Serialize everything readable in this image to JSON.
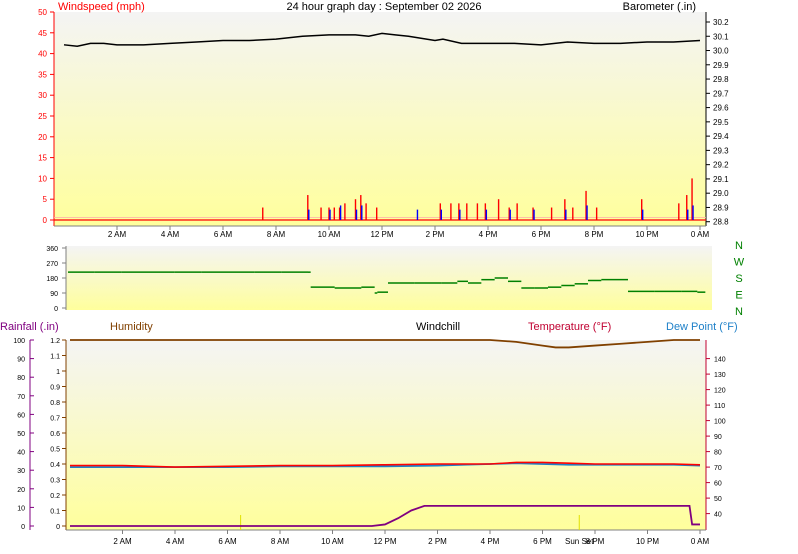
{
  "header": {
    "title": "24 hour graph day : September 02 2026",
    "left_label": "Windspeed (mph)",
    "right_label": "Barometer (.in)"
  },
  "wind_dir_labels": [
    "N",
    "W",
    "S",
    "E",
    "N"
  ],
  "bottom_labels": {
    "rainfall": "Rainfall (.in)",
    "humidity": "Humidity",
    "windchill": "Windchill",
    "temperature": "Temperature (°F)",
    "dewpoint": "Dew Point (°F)",
    "sun_set_marker": "Sun Set"
  },
  "colors": {
    "wind": "#ff0000",
    "gust": "#0000ff",
    "barometer": "#000000",
    "direction": "#008000",
    "temperature": "#ff0000",
    "dewpoint": "#1e80c8",
    "humidity": "#804000",
    "rain": "#800080",
    "rain_axis": "#800080",
    "humidity_axis": "#804000",
    "temp_axis": "#c00030"
  },
  "chart_data": [
    {
      "type": "line",
      "name": "wind-barometer",
      "title": "24 hour graph day : September 02 2026",
      "x_ticks": [
        "2 AM",
        "4 AM",
        "6 AM",
        "8 AM",
        "10 AM",
        "12 PM",
        "2 PM",
        "4 PM",
        "6 PM",
        "8 PM",
        "10 PM",
        "0 AM"
      ],
      "xlim": [
        0,
        24
      ],
      "y_left": {
        "label": "Windspeed (mph)",
        "ticks": [
          0,
          5,
          10,
          15,
          20,
          25,
          30,
          35,
          40,
          45,
          50
        ],
        "ylim": [
          0,
          50
        ]
      },
      "y_right": {
        "label": "Barometer (.in)",
        "ticks": [
          28.8,
          28.9,
          29.0,
          29.1,
          29.2,
          29.3,
          29.4,
          29.5,
          29.6,
          29.7,
          29.8,
          29.9,
          30.0,
          30.1,
          30.2
        ],
        "ylim": [
          28.77,
          30.27
        ]
      },
      "series": [
        {
          "name": "Barometer",
          "axis": "right",
          "x": [
            0,
            0.5,
            1,
            1.5,
            2,
            3,
            4,
            5,
            6,
            7,
            8,
            9,
            10,
            11,
            11.5,
            12,
            12.5,
            13,
            14,
            14.3,
            15,
            16,
            17,
            18,
            19,
            20,
            21,
            22,
            23,
            24
          ],
          "y": [
            30.04,
            30.03,
            30.05,
            30.05,
            30.04,
            30.04,
            30.05,
            30.06,
            30.07,
            30.07,
            30.08,
            30.1,
            30.11,
            30.11,
            30.1,
            30.12,
            30.11,
            30.1,
            30.07,
            30.08,
            30.05,
            30.05,
            30.05,
            30.04,
            30.06,
            30.05,
            30.05,
            30.06,
            30.06,
            30.07
          ]
        },
        {
          "name": "Wind",
          "axis": "left",
          "x": [
            7.5,
            9.2,
            9.7,
            10,
            10.2,
            10.4,
            10.6,
            11,
            11.2,
            11.4,
            11.8,
            14.2,
            14.6,
            14.9,
            15.2,
            15.6,
            15.9,
            16.4,
            16.8,
            17.1,
            17.7,
            18.4,
            18.9,
            19.2,
            19.7,
            20.1,
            21.8,
            23.2,
            23.5,
            23.7
          ],
          "y": [
            3,
            6,
            3,
            3,
            3,
            3,
            4,
            5,
            6,
            4,
            3,
            4,
            4,
            4,
            4,
            4,
            4,
            5,
            3,
            4,
            3,
            3,
            5,
            3,
            7,
            3,
            5,
            4,
            6,
            10
          ]
        },
        {
          "name": "Gust",
          "axis": "left",
          "x": [
            9.2,
            10,
            10.4,
            11,
            11.2,
            13.3,
            14.2,
            14.9,
            15.9,
            16.8,
            17.7,
            18.9,
            19.7,
            21.8,
            23.5,
            23.7
          ],
          "y": [
            1,
            1,
            2,
            1,
            2,
            1,
            1,
            1,
            1,
            1,
            1,
            1,
            2,
            1,
            1,
            2
          ]
        }
      ]
    },
    {
      "type": "scatter",
      "name": "wind-direction",
      "y_ticks": [
        0,
        90,
        180,
        270,
        360
      ],
      "ylim": [
        0,
        360
      ],
      "series": [
        {
          "name": "Direction",
          "x": [
            0,
            1,
            2,
            3,
            4,
            5,
            6,
            7,
            8,
            9,
            9.1,
            10,
            10.5,
            11,
            11.5,
            11.6,
            12,
            13,
            14,
            14.6,
            15,
            15.5,
            16,
            16.5,
            17,
            17.5,
            18,
            18.5,
            19,
            19.5,
            20,
            21,
            22,
            23,
            23.6,
            23.9
          ],
          "y": [
            215,
            215,
            215,
            215,
            215,
            215,
            215,
            215,
            215,
            215,
            125,
            120,
            120,
            125,
            90,
            95,
            150,
            150,
            150,
            160,
            150,
            170,
            180,
            160,
            120,
            120,
            125,
            135,
            145,
            165,
            170,
            100,
            100,
            100,
            95,
            40
          ]
        }
      ]
    },
    {
      "type": "line",
      "name": "rain-humidity-temp",
      "x_ticks": [
        "2 AM",
        "4 AM",
        "6 AM",
        "8 AM",
        "10 AM",
        "12 PM",
        "2 PM",
        "4 PM",
        "6 PM",
        "8 PM",
        "10 PM",
        "0 AM"
      ],
      "xlim": [
        0,
        24
      ],
      "y_left_outer": {
        "label": "Rainfall (.in)",
        "ticks": [
          0,
          10,
          20,
          30,
          40,
          50,
          60,
          70,
          80,
          90,
          100
        ]
      },
      "y_left_inner": {
        "label": "Humidity",
        "ticks": [
          0,
          0.1,
          0.2,
          0.3,
          0.4,
          0.5,
          0.6,
          0.7,
          0.8,
          0.9,
          1,
          1.1,
          1.2
        ],
        "ylim": [
          0,
          1.2
        ]
      },
      "y_right": {
        "label": "Temperature (°F)",
        "ticks": [
          40,
          50,
          60,
          70,
          80,
          90,
          100,
          110,
          120,
          130,
          140
        ],
        "ylim": [
          32,
          152
        ]
      },
      "series": [
        {
          "name": "Humidity",
          "axis": "left",
          "x": [
            0,
            5,
            10,
            15,
            16,
            17,
            17.5,
            18,
            18.5,
            19,
            20,
            21,
            22,
            23,
            24
          ],
          "y": [
            100,
            100,
            100,
            100,
            100,
            99,
            98,
            97,
            96,
            96,
            97,
            98,
            99,
            100,
            100
          ]
        },
        {
          "name": "Temperature",
          "axis": "right",
          "x": [
            0,
            2,
            4,
            6,
            8,
            10,
            12,
            14,
            15,
            16,
            17,
            18,
            19,
            20,
            21,
            22,
            23,
            24
          ],
          "y": [
            71,
            71,
            70,
            70.5,
            71,
            71,
            71.5,
            72,
            72,
            72,
            73,
            73,
            72.5,
            72,
            72,
            72,
            72,
            71.5
          ]
        },
        {
          "name": "Dew Point",
          "axis": "right",
          "x": [
            0,
            2,
            4,
            6,
            8,
            10,
            12,
            14,
            15,
            16,
            17,
            18,
            19,
            20,
            21,
            22,
            23,
            24
          ],
          "y": [
            70,
            70,
            70,
            70,
            70.5,
            70.5,
            70.5,
            71,
            71.5,
            72,
            72.5,
            72,
            71.5,
            71.5,
            71.5,
            71.5,
            71.5,
            71
          ]
        },
        {
          "name": "Rainfall",
          "axis": "left",
          "x": [
            0,
            11.5,
            12,
            12.5,
            13,
            13.5,
            14,
            16,
            18,
            20,
            22,
            23.5,
            23.6,
            23.7,
            24
          ],
          "y": [
            0,
            0,
            0.01,
            0.05,
            0.1,
            0.13,
            0.13,
            0.13,
            0.13,
            0.13,
            0.13,
            0.13,
            0.13,
            0.01,
            0.01
          ]
        }
      ]
    }
  ]
}
